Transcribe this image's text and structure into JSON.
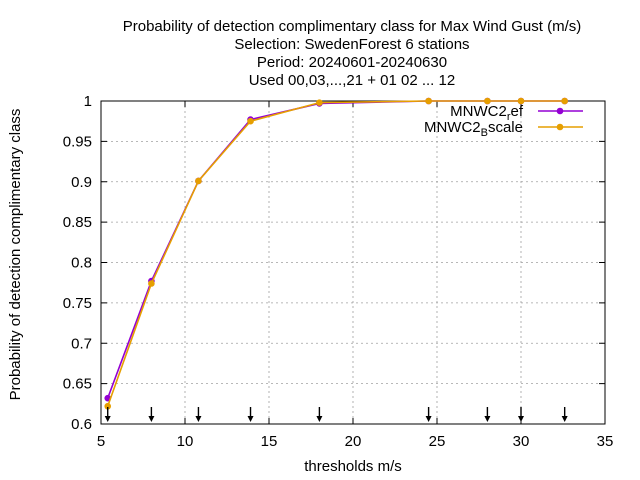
{
  "chart_data": {
    "type": "line",
    "title_lines": [
      "Probability of detection complimentary class  for Max Wind Gust (m/s)",
      "Selection: SwedenForest      6 stations",
      "Period: 20240601-20240630",
      "Used 00,03,...,21 + 01 02 ... 12"
    ],
    "xlabel": "thresholds m/s",
    "ylabel": "Probability of detection complimentary class",
    "xlim": [
      5,
      35
    ],
    "ylim": [
      0.6,
      1.0
    ],
    "xticks": [
      5,
      10,
      15,
      20,
      25,
      30,
      35
    ],
    "yticks": [
      0.6,
      0.65,
      0.7,
      0.75,
      0.8,
      0.85,
      0.9,
      0.95,
      1.0
    ],
    "xtick_labels": [
      "5",
      "10",
      "15",
      "20",
      "25",
      "30",
      "35"
    ],
    "ytick_labels": [
      "0.6",
      "0.65",
      "0.7",
      "0.75",
      "0.8",
      "0.85",
      "0.9",
      "0.95",
      "1"
    ],
    "grid": true,
    "legend_position": "top-right",
    "threshold_markers": [
      5.4,
      8.0,
      10.8,
      13.9,
      18.0,
      24.5,
      28.0,
      30.0,
      32.6
    ],
    "series": [
      {
        "name": "MNWC2_ref",
        "legend_main": "MNWC2",
        "legend_sub": "r",
        "legend_tail": "ef",
        "color": "#9400d3",
        "x": [
          5.4,
          8.0,
          10.8,
          13.9,
          18.0,
          24.5,
          28.0,
          30.0,
          32.6
        ],
        "y": [
          0.632,
          0.777,
          0.901,
          0.977,
          0.997,
          1.0,
          1.0,
          1.0,
          1.0
        ]
      },
      {
        "name": "MNWC2_Bscale",
        "legend_main": "MNWC2",
        "legend_sub": "B",
        "legend_tail": "scale",
        "color": "#e69f00",
        "x": [
          5.4,
          8.0,
          10.8,
          13.9,
          18.0,
          24.5,
          28.0,
          30.0,
          32.6
        ],
        "y": [
          0.622,
          0.774,
          0.901,
          0.975,
          0.998,
          1.0,
          1.0,
          1.0,
          1.0
        ]
      }
    ]
  }
}
